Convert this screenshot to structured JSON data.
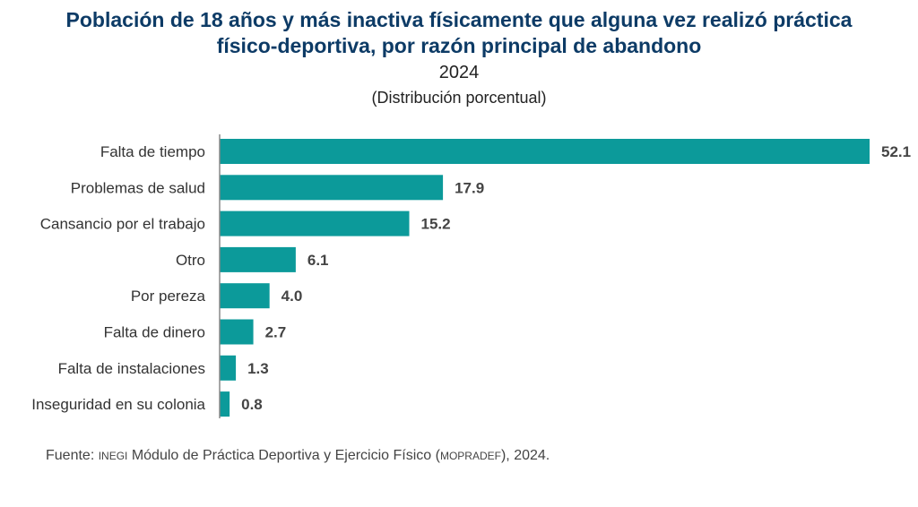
{
  "chart_data": {
    "type": "bar",
    "orientation": "horizontal",
    "title": "Población de 18 años y más inactiva físicamente que alguna vez realizó práctica físico-deportiva, por razón principal de abandono",
    "year": "2024",
    "subtitle": "(Distribución porcentual)",
    "categories": [
      "Falta de tiempo",
      "Problemas de salud",
      "Cansancio por el trabajo",
      "Otro",
      "Por pereza",
      "Falta de dinero",
      "Falta de instalaciones",
      "Inseguridad en su colonia"
    ],
    "values": [
      52.1,
      17.9,
      15.2,
      6.1,
      4.0,
      2.7,
      1.3,
      0.8
    ],
    "value_labels": [
      "52.1",
      "17.9",
      "15.2",
      "6.1",
      "4.0",
      "2.7",
      "1.3",
      "0.8"
    ],
    "xlim": [
      0,
      52.1
    ],
    "grid": false,
    "bar_color": "#0c9a9a"
  },
  "source": {
    "prefix": "Fuente: ",
    "inegi": "INEGI",
    "text": " Módulo de Práctica Deportiva y Ejercicio Físico (",
    "acronym": "MOPRADEF",
    "suffix": "), 2024."
  }
}
